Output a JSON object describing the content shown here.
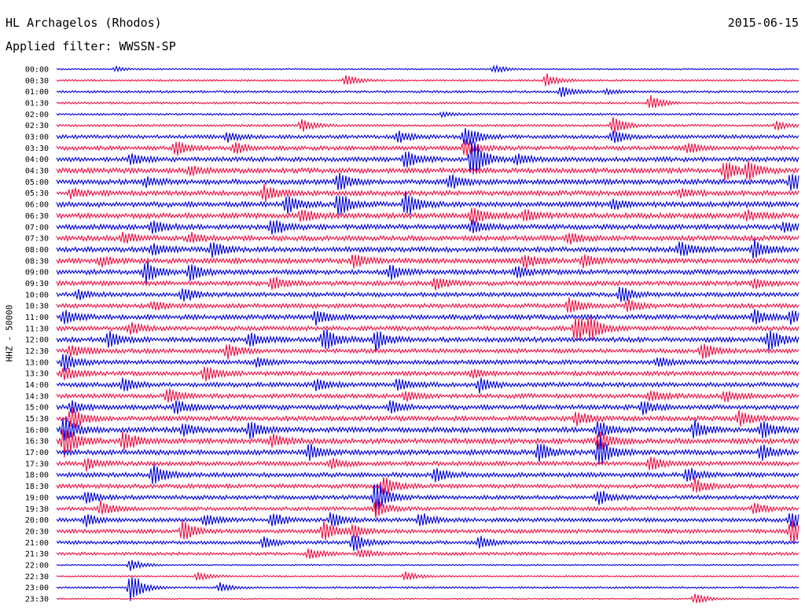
{
  "header": {
    "station": "HL Archagelos (Rhodos)",
    "date": "2015-06-15",
    "filter": "Applied filter: WWSSN-SP"
  },
  "chart_data": {
    "type": "line",
    "title": "HL Archagelos (Rhodos)",
    "ylabel": "HHZ - 50000",
    "colors": [
      "#0000dd",
      "#ee1144"
    ],
    "rows": [
      "00:00",
      "00:30",
      "01:00",
      "01:30",
      "02:00",
      "02:30",
      "03:00",
      "03:30",
      "04:00",
      "04:30",
      "05:00",
      "05:30",
      "06:00",
      "06:30",
      "07:00",
      "07:30",
      "08:00",
      "08:30",
      "09:00",
      "09:30",
      "10:00",
      "10:30",
      "11:00",
      "11:30",
      "12:00",
      "12:30",
      "13:00",
      "13:30",
      "14:00",
      "14:30",
      "15:00",
      "15:30",
      "16:00",
      "16:30",
      "17:00",
      "17:30",
      "18:00",
      "18:30",
      "19:00",
      "19:30",
      "20:00",
      "20:30",
      "21:00",
      "21:30",
      "22:00",
      "22:30",
      "23:00",
      "23:30"
    ],
    "noise": [
      0.6,
      0.8,
      1.0,
      0.9,
      0.9,
      1.0,
      1.6,
      1.8,
      2.0,
      2.2,
      2.2,
      2.2,
      2.3,
      2.3,
      2.2,
      2.2,
      2.2,
      2.2,
      2.1,
      2.0,
      1.9,
      1.9,
      2.1,
      1.9,
      2.1,
      1.9,
      1.9,
      1.9,
      2.0,
      1.9,
      2.1,
      2.1,
      2.2,
      2.3,
      2.2,
      1.9,
      2.0,
      1.8,
      1.8,
      1.6,
      1.7,
      1.7,
      1.5,
      1.3,
      0.6,
      0.7,
      0.8,
      0.6
    ],
    "events": [
      {
        "row": 0,
        "t": 0.08,
        "a": 3
      },
      {
        "row": 0,
        "t": 0.59,
        "a": 5
      },
      {
        "row": 1,
        "t": 0.39,
        "a": 8
      },
      {
        "row": 1,
        "t": 0.66,
        "a": 9
      },
      {
        "row": 2,
        "t": 0.68,
        "a": 7
      },
      {
        "row": 2,
        "t": 0.74,
        "a": 3
      },
      {
        "row": 3,
        "t": 0.8,
        "a": 10
      },
      {
        "row": 4,
        "t": 0.52,
        "a": 3
      },
      {
        "row": 5,
        "t": 0.33,
        "a": 8
      },
      {
        "row": 5,
        "t": 0.75,
        "a": 12
      },
      {
        "row": 5,
        "t": 0.97,
        "a": 6
      },
      {
        "row": 6,
        "t": 0.23,
        "a": 6
      },
      {
        "row": 6,
        "t": 0.46,
        "a": 8
      },
      {
        "row": 6,
        "t": 0.55,
        "a": 16
      },
      {
        "row": 6,
        "t": 0.75,
        "a": 9
      },
      {
        "row": 7,
        "t": 0.16,
        "a": 10
      },
      {
        "row": 7,
        "t": 0.24,
        "a": 8
      },
      {
        "row": 7,
        "t": 0.55,
        "a": 12
      },
      {
        "row": 7,
        "t": 0.85,
        "a": 7
      },
      {
        "row": 8,
        "t": 0.1,
        "a": 7
      },
      {
        "row": 8,
        "t": 0.47,
        "a": 12
      },
      {
        "row": 8,
        "t": 0.56,
        "a": 28
      },
      {
        "row": 8,
        "t": 0.62,
        "a": 7
      },
      {
        "row": 9,
        "t": 0.18,
        "a": 6
      },
      {
        "row": 9,
        "t": 0.9,
        "a": 14
      },
      {
        "row": 9,
        "t": 0.93,
        "a": 12
      },
      {
        "row": 10,
        "t": 0.12,
        "a": 6
      },
      {
        "row": 10,
        "t": 0.38,
        "a": 12
      },
      {
        "row": 10,
        "t": 0.53,
        "a": 9
      },
      {
        "row": 10,
        "t": 0.99,
        "a": 12
      },
      {
        "row": 11,
        "t": 0.02,
        "a": 6
      },
      {
        "row": 11,
        "t": 0.28,
        "a": 10
      },
      {
        "row": 11,
        "t": 0.84,
        "a": 5
      },
      {
        "row": 12,
        "t": 0.31,
        "a": 12
      },
      {
        "row": 12,
        "t": 0.38,
        "a": 16
      },
      {
        "row": 12,
        "t": 0.47,
        "a": 18
      },
      {
        "row": 12,
        "t": 0.75,
        "a": 6
      },
      {
        "row": 13,
        "t": 0.33,
        "a": 8
      },
      {
        "row": 13,
        "t": 0.56,
        "a": 12
      },
      {
        "row": 13,
        "t": 0.63,
        "a": 7
      },
      {
        "row": 13,
        "t": 0.93,
        "a": 6
      },
      {
        "row": 14,
        "t": 0.13,
        "a": 8
      },
      {
        "row": 14,
        "t": 0.29,
        "a": 12
      },
      {
        "row": 14,
        "t": 0.56,
        "a": 8
      },
      {
        "row": 14,
        "t": 0.98,
        "a": 6
      },
      {
        "row": 15,
        "t": 0.09,
        "a": 8
      },
      {
        "row": 15,
        "t": 0.18,
        "a": 6
      },
      {
        "row": 15,
        "t": 0.69,
        "a": 7
      },
      {
        "row": 16,
        "t": 0.13,
        "a": 8
      },
      {
        "row": 16,
        "t": 0.21,
        "a": 10
      },
      {
        "row": 16,
        "t": 0.84,
        "a": 10
      },
      {
        "row": 16,
        "t": 0.94,
        "a": 12
      },
      {
        "row": 17,
        "t": 0.06,
        "a": 6
      },
      {
        "row": 17,
        "t": 0.4,
        "a": 10
      },
      {
        "row": 17,
        "t": 0.63,
        "a": 10
      },
      {
        "row": 17,
        "t": 0.71,
        "a": 8
      },
      {
        "row": 18,
        "t": 0.12,
        "a": 16
      },
      {
        "row": 18,
        "t": 0.18,
        "a": 12
      },
      {
        "row": 18,
        "t": 0.45,
        "a": 10
      },
      {
        "row": 18,
        "t": 0.62,
        "a": 8
      },
      {
        "row": 19,
        "t": 0.29,
        "a": 10
      },
      {
        "row": 19,
        "t": 0.51,
        "a": 8
      },
      {
        "row": 19,
        "t": 0.94,
        "a": 6
      },
      {
        "row": 20,
        "t": 0.03,
        "a": 6
      },
      {
        "row": 20,
        "t": 0.17,
        "a": 10
      },
      {
        "row": 20,
        "t": 0.76,
        "a": 12
      },
      {
        "row": 21,
        "t": 0.13,
        "a": 6
      },
      {
        "row": 21,
        "t": 0.69,
        "a": 10
      },
      {
        "row": 21,
        "t": 0.77,
        "a": 8
      },
      {
        "row": 22,
        "t": 0.01,
        "a": 10
      },
      {
        "row": 22,
        "t": 0.35,
        "a": 10
      },
      {
        "row": 22,
        "t": 0.94,
        "a": 10
      },
      {
        "row": 22,
        "t": 0.99,
        "a": 9
      },
      {
        "row": 23,
        "t": 0.1,
        "a": 8
      },
      {
        "row": 23,
        "t": 0.7,
        "a": 22
      },
      {
        "row": 23,
        "t": 0.72,
        "a": 12
      },
      {
        "row": 24,
        "t": 0.07,
        "a": 10
      },
      {
        "row": 24,
        "t": 0.26,
        "a": 10
      },
      {
        "row": 24,
        "t": 0.36,
        "a": 16
      },
      {
        "row": 24,
        "t": 0.43,
        "a": 14
      },
      {
        "row": 24,
        "t": 0.96,
        "a": 16
      },
      {
        "row": 25,
        "t": 0.02,
        "a": 8
      },
      {
        "row": 25,
        "t": 0.23,
        "a": 10
      },
      {
        "row": 25,
        "t": 0.87,
        "a": 10
      },
      {
        "row": 26,
        "t": 0.01,
        "a": 12
      },
      {
        "row": 26,
        "t": 0.27,
        "a": 6
      },
      {
        "row": 26,
        "t": 0.81,
        "a": 6
      },
      {
        "row": 27,
        "t": 0.01,
        "a": 10
      },
      {
        "row": 27,
        "t": 0.2,
        "a": 12
      },
      {
        "row": 27,
        "t": 0.56,
        "a": 6
      },
      {
        "row": 28,
        "t": 0.09,
        "a": 8
      },
      {
        "row": 28,
        "t": 0.35,
        "a": 8
      },
      {
        "row": 28,
        "t": 0.46,
        "a": 8
      },
      {
        "row": 28,
        "t": 0.57,
        "a": 9
      },
      {
        "row": 29,
        "t": 0.15,
        "a": 10
      },
      {
        "row": 29,
        "t": 0.47,
        "a": 6
      },
      {
        "row": 29,
        "t": 0.8,
        "a": 8
      },
      {
        "row": 29,
        "t": 0.9,
        "a": 7
      },
      {
        "row": 30,
        "t": 0.02,
        "a": 8
      },
      {
        "row": 30,
        "t": 0.16,
        "a": 9
      },
      {
        "row": 30,
        "t": 0.45,
        "a": 8
      },
      {
        "row": 30,
        "t": 0.79,
        "a": 8
      },
      {
        "row": 31,
        "t": 0.02,
        "a": 16
      },
      {
        "row": 31,
        "t": 0.7,
        "a": 10
      },
      {
        "row": 31,
        "t": 0.92,
        "a": 10
      },
      {
        "row": 32,
        "t": 0.01,
        "a": 18
      },
      {
        "row": 32,
        "t": 0.17,
        "a": 8
      },
      {
        "row": 32,
        "t": 0.26,
        "a": 12
      },
      {
        "row": 32,
        "t": 0.73,
        "a": 12
      },
      {
        "row": 32,
        "t": 0.86,
        "a": 12
      },
      {
        "row": 32,
        "t": 0.95,
        "a": 12
      },
      {
        "row": 33,
        "t": 0.01,
        "a": 22
      },
      {
        "row": 33,
        "t": 0.09,
        "a": 14
      },
      {
        "row": 33,
        "t": 0.29,
        "a": 8
      },
      {
        "row": 33,
        "t": 0.73,
        "a": 14
      },
      {
        "row": 34,
        "t": 0.34,
        "a": 10
      },
      {
        "row": 34,
        "t": 0.65,
        "a": 12
      },
      {
        "row": 34,
        "t": 0.73,
        "a": 22
      },
      {
        "row": 34,
        "t": 0.95,
        "a": 10
      },
      {
        "row": 35,
        "t": 0.04,
        "a": 8
      },
      {
        "row": 35,
        "t": 0.37,
        "a": 6
      },
      {
        "row": 35,
        "t": 0.8,
        "a": 10
      },
      {
        "row": 36,
        "t": 0.13,
        "a": 14
      },
      {
        "row": 36,
        "t": 0.51,
        "a": 10
      },
      {
        "row": 36,
        "t": 0.85,
        "a": 10
      },
      {
        "row": 37,
        "t": 0.44,
        "a": 14
      },
      {
        "row": 37,
        "t": 0.86,
        "a": 10
      },
      {
        "row": 38,
        "t": 0.04,
        "a": 8
      },
      {
        "row": 38,
        "t": 0.43,
        "a": 24
      },
      {
        "row": 38,
        "t": 0.73,
        "a": 10
      },
      {
        "row": 39,
        "t": 0.06,
        "a": 10
      },
      {
        "row": 39,
        "t": 0.43,
        "a": 12
      },
      {
        "row": 39,
        "t": 0.94,
        "a": 8
      },
      {
        "row": 40,
        "t": 0.04,
        "a": 8
      },
      {
        "row": 40,
        "t": 0.2,
        "a": 8
      },
      {
        "row": 40,
        "t": 0.29,
        "a": 10
      },
      {
        "row": 40,
        "t": 0.37,
        "a": 10
      },
      {
        "row": 40,
        "t": 0.49,
        "a": 10
      },
      {
        "row": 40,
        "t": 0.99,
        "a": 12
      },
      {
        "row": 41,
        "t": 0.17,
        "a": 14
      },
      {
        "row": 41,
        "t": 0.36,
        "a": 14
      },
      {
        "row": 41,
        "t": 0.4,
        "a": 8
      },
      {
        "row": 41,
        "t": 0.99,
        "a": 18
      },
      {
        "row": 42,
        "t": 0.28,
        "a": 8
      },
      {
        "row": 42,
        "t": 0.4,
        "a": 12
      },
      {
        "row": 42,
        "t": 0.57,
        "a": 8
      },
      {
        "row": 43,
        "t": 0.34,
        "a": 8
      },
      {
        "row": 43,
        "t": 0.41,
        "a": 6
      },
      {
        "row": 44,
        "t": 0.1,
        "a": 8
      },
      {
        "row": 45,
        "t": 0.19,
        "a": 6
      },
      {
        "row": 45,
        "t": 0.47,
        "a": 6
      },
      {
        "row": 46,
        "t": 0.1,
        "a": 22
      },
      {
        "row": 46,
        "t": 0.22,
        "a": 6
      },
      {
        "row": 47,
        "t": 0.86,
        "a": 8
      }
    ]
  }
}
